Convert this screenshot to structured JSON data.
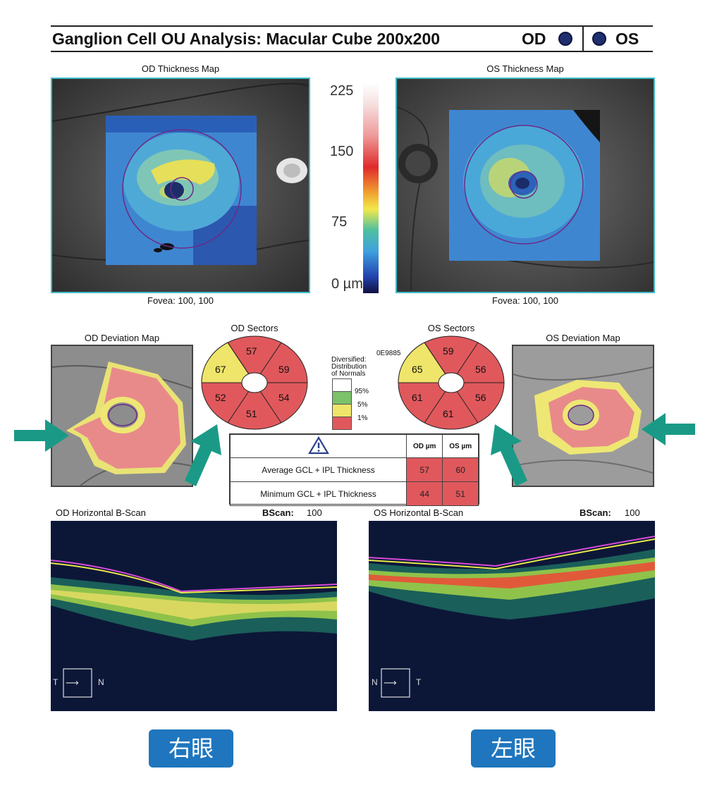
{
  "header": {
    "title": "Ganglion Cell OU Analysis: Macular Cube 200x200",
    "od_label": "OD",
    "os_label": "OS"
  },
  "od_thickness": {
    "title": "OD Thickness Map",
    "fovea": "Fovea: 100, 100"
  },
  "os_thickness": {
    "title": "OS Thickness Map",
    "fovea": "Fovea: 100, 100"
  },
  "color_scale": {
    "labels": [
      "225",
      "150",
      "75",
      "0 µm"
    ]
  },
  "od_deviation": {
    "title": "OD Deviation Map"
  },
  "os_deviation": {
    "title": "OS Deviation Map"
  },
  "od_sectors": {
    "title": "OD Sectors",
    "values": [
      "57",
      "59",
      "54",
      "51",
      "52",
      "67"
    ]
  },
  "os_sectors": {
    "title": "OS Sectors",
    "values": [
      "59",
      "56",
      "56",
      "61",
      "61",
      "65"
    ]
  },
  "legend": {
    "code": "0E9885",
    "title_lines": [
      "Diversified:",
      "Distribution",
      "of Normals"
    ],
    "items": [
      "95%",
      "5%",
      "1%"
    ]
  },
  "metrics_table": {
    "col_od": "OD µm",
    "col_os": "OS µm",
    "rows": [
      {
        "label": "Average GCL + IPL Thickness",
        "od": "57",
        "os": "60"
      },
      {
        "label": "Minimum GCL + IPL Thickness",
        "od": "44",
        "os": "51"
      }
    ]
  },
  "od_bscan": {
    "title": "OD Horizontal B-Scan",
    "bscan_label": "BScan:",
    "bscan_value": "100",
    "dir_left": "T",
    "dir_right": "N"
  },
  "os_bscan": {
    "title": "OS Horizontal B-Scan",
    "bscan_label": "BScan:",
    "bscan_value": "100",
    "dir_left": "N",
    "dir_right": "T"
  },
  "badges": {
    "right_eye": "右眼",
    "left_eye": "左眼"
  },
  "colors": {
    "teal_border": "#3fb9c6",
    "sector_red": "#e0585c",
    "sector_yellow": "#efe56a",
    "legend_green": "#7cc26a",
    "arrow_teal": "#1a9a86",
    "badge_blue": "#1f76be"
  }
}
